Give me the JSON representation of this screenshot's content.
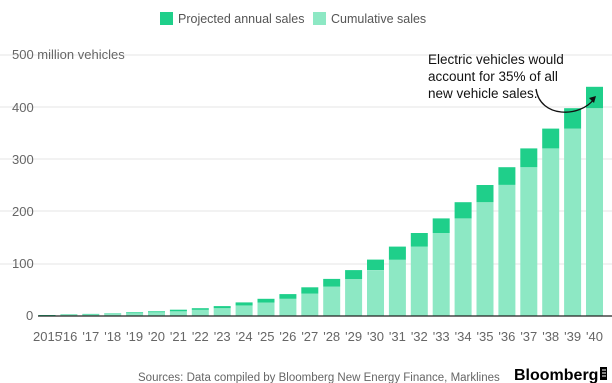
{
  "chart_data": {
    "type": "bar",
    "stacked": true,
    "categories": [
      "2015",
      "'16",
      "'17",
      "'18",
      "'19",
      "'20",
      "'21",
      "'22",
      "'23",
      "'24",
      "'25",
      "'26",
      "'27",
      "'28",
      "'29",
      "'30",
      "'31",
      "'32",
      "'33",
      "'34",
      "'35",
      "'36",
      "'37",
      "'38",
      "'39",
      "'40"
    ],
    "series": [
      {
        "name": "Cumulative sales",
        "color": "#8de8c4",
        "values": [
          1,
          2,
          3,
          4,
          5,
          7,
          9,
          12,
          15,
          20,
          26,
          33,
          43,
          56,
          71,
          88,
          108,
          133,
          159,
          187,
          218,
          251,
          285,
          321,
          359,
          398
        ]
      },
      {
        "name": "Projected annual sales",
        "color": "#1fcf8a",
        "values": [
          1,
          1,
          1,
          1,
          2,
          2,
          3,
          3,
          4,
          6,
          7,
          9,
          12,
          15,
          17,
          20,
          25,
          26,
          28,
          31,
          33,
          34,
          36,
          38,
          39,
          41
        ]
      }
    ],
    "y_unit_label": "500 million vehicles",
    "y_ticks": [
      "400",
      "300",
      "200",
      "100",
      "0"
    ],
    "ylim": [
      0,
      500
    ],
    "legend_position": "top",
    "grid": true,
    "annotation": [
      "Electric vehicles would",
      "account for 35% of all",
      "new vehicle sales."
    ]
  },
  "footer": {
    "source": "Sources: Data compiled by Bloomberg New Energy Finance, Marklines",
    "brand": "Bloomberg"
  }
}
